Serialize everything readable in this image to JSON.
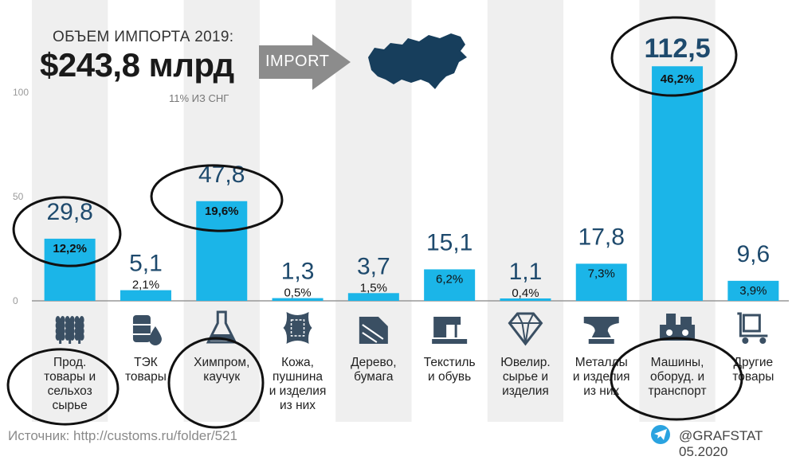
{
  "header": {
    "title_small": "ОБЪЕМ ИМПОРТА 2019:",
    "title_big": "$243,8 млрд",
    "arrow_label": "IMPORT",
    "subtitle": "11% ИЗ СНГ"
  },
  "footer": {
    "source": "Источник: http://customs.ru/folder/521",
    "brand": "@GRAFSTAT 05.2020"
  },
  "colors": {
    "bar": "#1bb5e8",
    "band": "#efefef",
    "icon": "#3a4f63",
    "map": "#173e5c",
    "arrow": "#8c8c8c"
  },
  "chart_data": {
    "type": "bar",
    "ylim": [
      0,
      120
    ],
    "yticks": [
      0,
      50,
      100
    ],
    "categories": [
      "Прод. товары и сельхоз сырье",
      "ТЭК товары",
      "Химпром, каучук",
      "Кожа, пушнина и изделия из них",
      "Дерево, бумага",
      "Текстиль и обувь",
      "Ювелир. сырье и изделия",
      "Металлы и изделия из них",
      "Машины, оборуд. и транспорт",
      "Другие товары"
    ],
    "category_lines": [
      [
        "Прод.",
        "товары и",
        "сельхоз",
        "сырье"
      ],
      [
        "ТЭК",
        "товары"
      ],
      [
        "Химпром,",
        "каучук"
      ],
      [
        "Кожа,",
        "пушнина",
        "и изделия",
        "из них"
      ],
      [
        "Дерево,",
        "бумага"
      ],
      [
        "Текстиль",
        "и обувь"
      ],
      [
        "Ювелир.",
        "сырье и",
        "изделия"
      ],
      [
        "Металлы",
        "и изделия",
        "из них"
      ],
      [
        "Машины,",
        "оборуд. и",
        "транспорт"
      ],
      [
        "Другие",
        "товары"
      ]
    ],
    "values": [
      29.8,
      5.1,
      47.8,
      1.3,
      3.7,
      15.1,
      1.1,
      17.8,
      112.5,
      9.6
    ],
    "value_labels": [
      "29,8",
      "5,1",
      "47,8",
      "1,3",
      "3,7",
      "15,1",
      "1,1",
      "17,8",
      "112,5",
      "9,6"
    ],
    "share_labels": [
      "12,2%",
      "2,1%",
      "19,6%",
      "0,5%",
      "1,5%",
      "6,2%",
      "0,4%",
      "7,3%",
      "46,2%",
      "3,9%"
    ],
    "icons": [
      "wheat-icon",
      "oil-barrel-icon",
      "flask-icon",
      "leather-hide-icon",
      "wood-paper-icon",
      "sewing-machine-icon",
      "diamond-icon",
      "anvil-icon",
      "machine-icon",
      "cart-box-icon"
    ],
    "circled": [
      0,
      2,
      8
    ]
  }
}
